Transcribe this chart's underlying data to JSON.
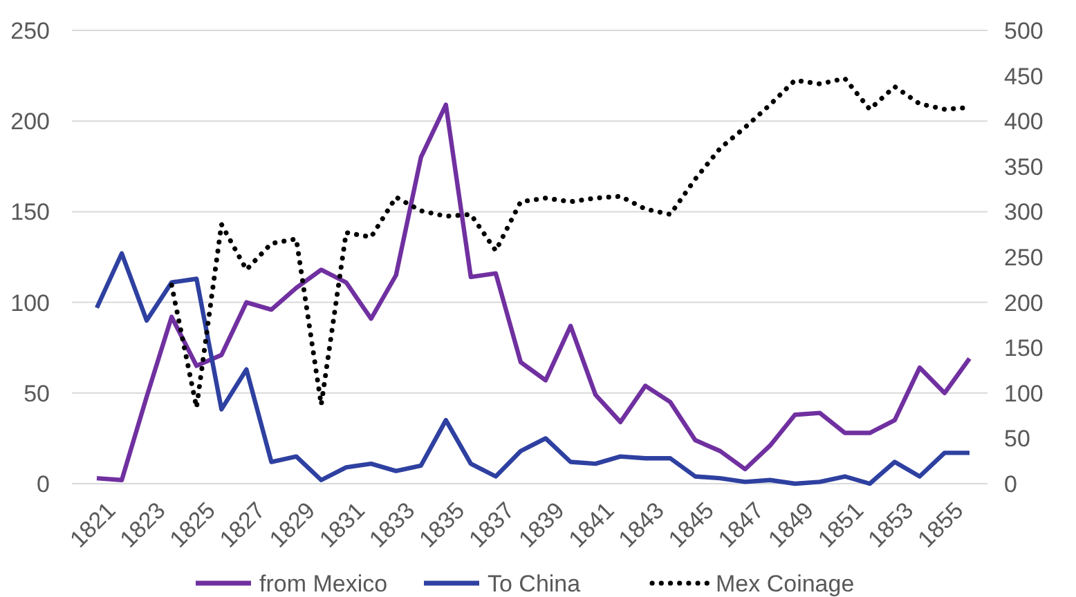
{
  "chart_data": {
    "type": "line",
    "categories": [
      "1821",
      null,
      "1823",
      null,
      "1825",
      null,
      "1827",
      null,
      "1829",
      null,
      "1831",
      null,
      "1833",
      null,
      "1835",
      null,
      "1837",
      null,
      "1839",
      null,
      "1841",
      null,
      "1843",
      null,
      "1845",
      null,
      "1847",
      null,
      "1849",
      null,
      "1851",
      null,
      "1853",
      null,
      "1855",
      null
    ],
    "series": [
      {
        "name": "from Mexico",
        "color": "#7030a0",
        "line_style": "solid",
        "values": [
          3,
          2,
          48,
          92,
          65,
          71,
          100,
          96,
          108,
          118,
          111,
          91,
          115,
          180,
          209,
          114,
          116,
          67,
          57,
          87,
          49,
          34,
          54,
          45,
          24,
          18,
          8,
          21,
          38,
          39,
          28,
          28,
          35,
          64,
          50,
          69
        ]
      },
      {
        "name": "To China",
        "color": "#2e40a0",
        "line_style": "solid",
        "values": [
          97,
          127,
          90,
          111,
          113,
          41,
          63,
          12,
          15,
          2,
          9,
          11,
          7,
          10,
          35,
          11,
          4,
          18,
          25,
          12,
          11,
          15,
          14,
          14,
          4,
          3,
          1,
          2,
          0,
          1,
          4,
          0,
          12,
          4,
          17,
          17
        ]
      },
      {
        "name": "Mex Coinage",
        "color": "#000000",
        "line_style": "dotted",
        "axis": "y2",
        "values": [
          null,
          null,
          null,
          219,
          84,
          286,
          236,
          265,
          270,
          87,
          277,
          272,
          316,
          301,
          295,
          297,
          257,
          311,
          315,
          311,
          315,
          317,
          303,
          297,
          336,
          370,
          393,
          418,
          445,
          441,
          447,
          413,
          438,
          419,
          413,
          415
        ]
      }
    ],
    "ylim": [
      0,
      250
    ],
    "yticks": [
      0,
      50,
      100,
      150,
      200,
      250
    ],
    "y2lim": [
      0,
      500
    ],
    "y2ticks": [
      0,
      50,
      100,
      150,
      200,
      250,
      300,
      350,
      400,
      450,
      500
    ],
    "grid": "y",
    "legend": "bottom"
  }
}
